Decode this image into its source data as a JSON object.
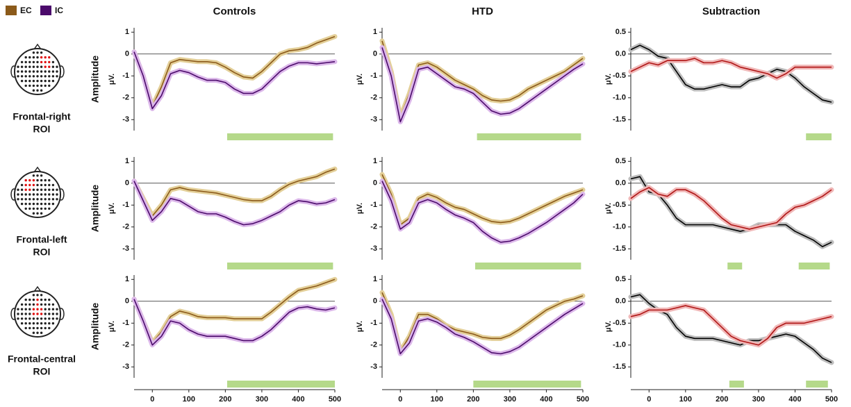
{
  "rois": [
    [
      "Frontal-right",
      "ROI"
    ],
    [
      "Frontal-left",
      "ROI"
    ],
    [
      "Frontal-central",
      "ROI"
    ]
  ],
  "chart_data": [
    {
      "type": "line",
      "title": "Controls",
      "ylabel": "Amplitude",
      "yunit": "μV.",
      "x": [
        -50,
        -25,
        0,
        25,
        50,
        75,
        100,
        125,
        150,
        175,
        200,
        225,
        250,
        275,
        300,
        325,
        350,
        375,
        400,
        425,
        450,
        475,
        500
      ],
      "xlim": [
        -50,
        500
      ],
      "ylim": [
        -3.5,
        1.2
      ],
      "yticks": [
        1,
        0,
        -1,
        -2,
        -3
      ],
      "series": [
        {
          "name": "EC",
          "color": "#8b5a1a",
          "band_color": "#e3cf98",
          "values": [
            0.1,
            -1.0,
            -2.4,
            -1.5,
            -0.4,
            -0.25,
            -0.3,
            -0.35,
            -0.35,
            -0.4,
            -0.6,
            -0.85,
            -1.05,
            -1.1,
            -0.8,
            -0.4,
            0.0,
            0.15,
            0.2,
            0.3,
            0.5,
            0.65,
            0.8
          ]
        },
        {
          "name": "IC",
          "color": "#4b0a6b",
          "band_color": "#dcb8ea",
          "values": [
            0.1,
            -1.0,
            -2.5,
            -1.9,
            -0.9,
            -0.75,
            -0.85,
            -1.05,
            -1.2,
            -1.2,
            -1.3,
            -1.6,
            -1.8,
            -1.8,
            -1.6,
            -1.2,
            -0.8,
            -0.55,
            -0.4,
            -0.4,
            -0.45,
            -0.4,
            -0.35
          ]
        }
      ],
      "significance": [
        [
          205,
          495
        ]
      ],
      "significance_color": "#b5d98a"
    },
    {
      "type": "line",
      "title": "HTD",
      "yunit": "μV.",
      "x": [
        -50,
        -25,
        0,
        25,
        50,
        75,
        100,
        125,
        150,
        175,
        200,
        225,
        250,
        275,
        300,
        325,
        350,
        375,
        400,
        425,
        450,
        475,
        500
      ],
      "xlim": [
        -50,
        500
      ],
      "ylim": [
        -3.5,
        1.2
      ],
      "yticks": [
        1,
        0,
        -1,
        -2,
        -3
      ],
      "series": [
        {
          "name": "EC",
          "color": "#8b5a1a",
          "band_color": "#e3cf98",
          "values": [
            0.6,
            -0.8,
            -2.9,
            -1.8,
            -0.5,
            -0.4,
            -0.6,
            -0.9,
            -1.2,
            -1.4,
            -1.6,
            -1.9,
            -2.1,
            -2.15,
            -2.1,
            -1.9,
            -1.6,
            -1.4,
            -1.2,
            -1.0,
            -0.8,
            -0.5,
            -0.2
          ]
        },
        {
          "name": "IC",
          "color": "#4b0a6b",
          "band_color": "#dcb8ea",
          "values": [
            0.3,
            -1.0,
            -3.1,
            -2.1,
            -0.7,
            -0.6,
            -0.9,
            -1.2,
            -1.5,
            -1.6,
            -1.8,
            -2.2,
            -2.6,
            -2.75,
            -2.7,
            -2.5,
            -2.2,
            -1.9,
            -1.6,
            -1.3,
            -1.0,
            -0.7,
            -0.45
          ]
        }
      ],
      "significance": [
        [
          210,
          495
        ]
      ],
      "significance_color": "#b5d98a"
    },
    {
      "type": "line",
      "title": "Subtraction",
      "yunit": "μV.",
      "x": [
        -50,
        -25,
        0,
        25,
        50,
        75,
        100,
        125,
        150,
        175,
        200,
        225,
        250,
        275,
        300,
        325,
        350,
        375,
        400,
        425,
        450,
        475,
        500
      ],
      "xlim": [
        -50,
        500
      ],
      "ylim": [
        -1.75,
        0.6
      ],
      "yticks": [
        0.5,
        {
          "value": 0,
          "label": "0.0"
        },
        -0.5,
        {
          "value": -1,
          "label": "-1.0"
        },
        -1.5
      ],
      "series": [
        {
          "color": "#000000",
          "band_color": "#bdbdbd",
          "values": [
            0.1,
            0.2,
            0.1,
            -0.05,
            -0.1,
            -0.4,
            -0.7,
            -0.8,
            -0.8,
            -0.75,
            -0.7,
            -0.75,
            -0.75,
            -0.6,
            -0.55,
            -0.45,
            -0.35,
            -0.4,
            -0.55,
            -0.75,
            -0.9,
            -1.05,
            -1.1
          ]
        },
        {
          "color": "#b01515",
          "band_color": "#f0b8b8",
          "values": [
            -0.4,
            -0.3,
            -0.2,
            -0.25,
            -0.15,
            -0.15,
            -0.15,
            -0.1,
            -0.2,
            -0.2,
            -0.15,
            -0.2,
            -0.3,
            -0.35,
            -0.4,
            -0.45,
            -0.55,
            -0.45,
            -0.3,
            -0.3,
            -0.3,
            -0.3,
            -0.3
          ]
        }
      ],
      "significance": [
        [
          430,
          500
        ]
      ],
      "significance_color": "#b5d98a"
    },
    {
      "type": "line",
      "ylabel": "Amplitude",
      "yunit": "μV.",
      "x": [
        -50,
        -25,
        0,
        25,
        50,
        75,
        100,
        125,
        150,
        175,
        200,
        225,
        250,
        275,
        300,
        325,
        350,
        375,
        400,
        425,
        450,
        475,
        500
      ],
      "xlim": [
        -50,
        500
      ],
      "ylim": [
        -3.5,
        1.2
      ],
      "yticks": [
        1,
        0,
        -1,
        -2,
        -3
      ],
      "series": [
        {
          "name": "EC",
          "color": "#8b5a1a",
          "band_color": "#e3cf98",
          "values": [
            0.1,
            -0.7,
            -1.5,
            -1.0,
            -0.3,
            -0.2,
            -0.3,
            -0.35,
            -0.4,
            -0.45,
            -0.55,
            -0.65,
            -0.75,
            -0.8,
            -0.8,
            -0.6,
            -0.3,
            -0.05,
            0.1,
            0.2,
            0.3,
            0.5,
            0.65
          ]
        },
        {
          "name": "IC",
          "color": "#4b0a6b",
          "band_color": "#dcb8ea",
          "values": [
            0.1,
            -0.8,
            -1.7,
            -1.3,
            -0.7,
            -0.8,
            -1.05,
            -1.3,
            -1.4,
            -1.4,
            -1.55,
            -1.75,
            -1.9,
            -1.85,
            -1.7,
            -1.5,
            -1.3,
            -1.0,
            -0.8,
            -0.85,
            -0.95,
            -0.9,
            -0.75
          ]
        }
      ],
      "significance": [
        [
          205,
          495
        ]
      ],
      "significance_color": "#b5d98a"
    },
    {
      "type": "line",
      "yunit": "μV.",
      "x": [
        -50,
        -25,
        0,
        25,
        50,
        75,
        100,
        125,
        150,
        175,
        200,
        225,
        250,
        275,
        300,
        325,
        350,
        375,
        400,
        425,
        450,
        475,
        500
      ],
      "xlim": [
        -50,
        500
      ],
      "ylim": [
        -3.5,
        1.2
      ],
      "yticks": [
        1,
        0,
        -1,
        -2,
        -3
      ],
      "series": [
        {
          "name": "EC",
          "color": "#8b5a1a",
          "band_color": "#e3cf98",
          "values": [
            0.4,
            -0.5,
            -1.9,
            -1.6,
            -0.7,
            -0.5,
            -0.65,
            -0.9,
            -1.1,
            -1.2,
            -1.4,
            -1.6,
            -1.75,
            -1.8,
            -1.75,
            -1.6,
            -1.4,
            -1.2,
            -1.0,
            -0.8,
            -0.6,
            -0.45,
            -0.3
          ]
        },
        {
          "name": "IC",
          "color": "#4b0a6b",
          "band_color": "#dcb8ea",
          "values": [
            0.1,
            -0.8,
            -2.1,
            -1.8,
            -0.9,
            -0.75,
            -0.9,
            -1.2,
            -1.45,
            -1.6,
            -1.8,
            -2.2,
            -2.5,
            -2.7,
            -2.65,
            -2.5,
            -2.3,
            -2.05,
            -1.8,
            -1.5,
            -1.2,
            -0.9,
            -0.5
          ]
        }
      ],
      "significance": [
        [
          205,
          495
        ]
      ],
      "significance_color": "#b5d98a"
    },
    {
      "type": "line",
      "yunit": "μV.",
      "x": [
        -50,
        -25,
        0,
        25,
        50,
        75,
        100,
        125,
        150,
        175,
        200,
        225,
        250,
        275,
        300,
        325,
        350,
        375,
        400,
        425,
        450,
        475,
        500
      ],
      "xlim": [
        -50,
        500
      ],
      "ylim": [
        -1.75,
        0.6
      ],
      "yticks": [
        0.5,
        {
          "value": 0,
          "label": "0.0"
        },
        -0.5,
        {
          "value": -1,
          "label": "-1.0"
        },
        -1.5
      ],
      "series": [
        {
          "color": "#000000",
          "band_color": "#bdbdbd",
          "values": [
            0.1,
            0.15,
            -0.2,
            -0.25,
            -0.5,
            -0.8,
            -0.95,
            -0.95,
            -0.95,
            -0.95,
            -1.0,
            -1.05,
            -1.1,
            -1.05,
            -0.95,
            -0.95,
            -0.95,
            -0.95,
            -1.1,
            -1.2,
            -1.3,
            -1.45,
            -1.35
          ]
        },
        {
          "color": "#b01515",
          "band_color": "#f0b8b8",
          "values": [
            -0.35,
            -0.2,
            -0.1,
            -0.25,
            -0.3,
            -0.15,
            -0.15,
            -0.25,
            -0.4,
            -0.6,
            -0.8,
            -0.95,
            -1.0,
            -1.05,
            -1.0,
            -0.95,
            -0.9,
            -0.7,
            -0.55,
            -0.5,
            -0.4,
            -0.3,
            -0.15
          ]
        }
      ],
      "significance": [
        [
          215,
          255
        ],
        [
          410,
          495
        ]
      ],
      "significance_color": "#b5d98a"
    },
    {
      "type": "line",
      "ylabel": "Amplitude",
      "yunit": "μV.",
      "x": [
        -50,
        -25,
        0,
        25,
        50,
        75,
        100,
        125,
        150,
        175,
        200,
        225,
        250,
        275,
        300,
        325,
        350,
        375,
        400,
        425,
        450,
        475,
        500
      ],
      "xlim": [
        -50,
        500
      ],
      "xticks": [
        0,
        100,
        200,
        300,
        400,
        500
      ],
      "ylim": [
        -3.5,
        1.2
      ],
      "yticks": [
        1,
        0,
        -1,
        -2,
        -3
      ],
      "series": [
        {
          "name": "EC",
          "color": "#8b5a1a",
          "band_color": "#e3cf98",
          "values": [
            0.1,
            -0.9,
            -1.9,
            -1.4,
            -0.7,
            -0.45,
            -0.55,
            -0.7,
            -0.75,
            -0.75,
            -0.75,
            -0.8,
            -0.8,
            -0.8,
            -0.8,
            -0.5,
            -0.15,
            0.2,
            0.5,
            0.6,
            0.7,
            0.85,
            1.0
          ]
        },
        {
          "name": "IC",
          "color": "#4b0a6b",
          "band_color": "#dcb8ea",
          "values": [
            0.1,
            -0.9,
            -2.0,
            -1.6,
            -0.9,
            -1.0,
            -1.3,
            -1.5,
            -1.6,
            -1.6,
            -1.6,
            -1.7,
            -1.8,
            -1.8,
            -1.6,
            -1.3,
            -0.9,
            -0.5,
            -0.3,
            -0.25,
            -0.35,
            -0.4,
            -0.3
          ]
        }
      ],
      "significance": [
        [
          205,
          500
        ]
      ],
      "significance_color": "#b5d98a"
    },
    {
      "type": "line",
      "yunit": "μV.",
      "x": [
        -50,
        -25,
        0,
        25,
        50,
        75,
        100,
        125,
        150,
        175,
        200,
        225,
        250,
        275,
        300,
        325,
        350,
        375,
        400,
        425,
        450,
        475,
        500
      ],
      "xlim": [
        -50,
        500
      ],
      "xticks": [
        0,
        100,
        200,
        300,
        400,
        500
      ],
      "ylim": [
        -3.5,
        1.2
      ],
      "yticks": [
        1,
        0,
        -1,
        -2,
        -3
      ],
      "series": [
        {
          "name": "EC",
          "color": "#8b5a1a",
          "band_color": "#e3cf98",
          "values": [
            0.4,
            -0.6,
            -2.3,
            -1.6,
            -0.6,
            -0.6,
            -0.8,
            -1.1,
            -1.3,
            -1.4,
            -1.5,
            -1.65,
            -1.7,
            -1.7,
            -1.55,
            -1.3,
            -1.0,
            -0.7,
            -0.4,
            -0.2,
            0.0,
            0.1,
            0.25
          ]
        },
        {
          "name": "IC",
          "color": "#4b0a6b",
          "band_color": "#dcb8ea",
          "values": [
            0.1,
            -0.8,
            -2.4,
            -1.9,
            -0.9,
            -0.8,
            -0.95,
            -1.2,
            -1.5,
            -1.65,
            -1.85,
            -2.1,
            -2.35,
            -2.4,
            -2.3,
            -2.1,
            -1.8,
            -1.5,
            -1.2,
            -0.9,
            -0.6,
            -0.35,
            -0.1
          ]
        }
      ],
      "significance": [
        [
          200,
          495
        ]
      ],
      "significance_color": "#b5d98a"
    },
    {
      "type": "line",
      "yunit": "μV.",
      "x": [
        -50,
        -25,
        0,
        25,
        50,
        75,
        100,
        125,
        150,
        175,
        200,
        225,
        250,
        275,
        300,
        325,
        350,
        375,
        400,
        425,
        450,
        475,
        500
      ],
      "xlim": [
        -50,
        500
      ],
      "xticks": [
        0,
        100,
        200,
        300,
        400,
        500
      ],
      "ylim": [
        -1.75,
        0.6
      ],
      "yticks": [
        0.5,
        {
          "value": 0,
          "label": "0.0"
        },
        -0.5,
        {
          "value": -1,
          "label": "-1.0"
        },
        -1.5
      ],
      "series": [
        {
          "color": "#000000",
          "band_color": "#bdbdbd",
          "values": [
            0.1,
            0.15,
            -0.05,
            -0.2,
            -0.3,
            -0.6,
            -0.8,
            -0.85,
            -0.85,
            -0.85,
            -0.9,
            -0.95,
            -1.0,
            -0.9,
            -0.9,
            -0.85,
            -0.8,
            -0.75,
            -0.8,
            -0.95,
            -1.1,
            -1.3,
            -1.4
          ]
        },
        {
          "color": "#b01515",
          "band_color": "#f0b8b8",
          "values": [
            -0.35,
            -0.3,
            -0.2,
            -0.2,
            -0.2,
            -0.15,
            -0.1,
            -0.15,
            -0.2,
            -0.4,
            -0.6,
            -0.8,
            -0.9,
            -0.95,
            -1.0,
            -0.85,
            -0.6,
            -0.5,
            -0.5,
            -0.5,
            -0.45,
            -0.4,
            -0.35
          ]
        }
      ],
      "significance": [
        [
          220,
          260
        ],
        [
          430,
          490
        ]
      ],
      "significance_color": "#b5d98a"
    }
  ]
}
